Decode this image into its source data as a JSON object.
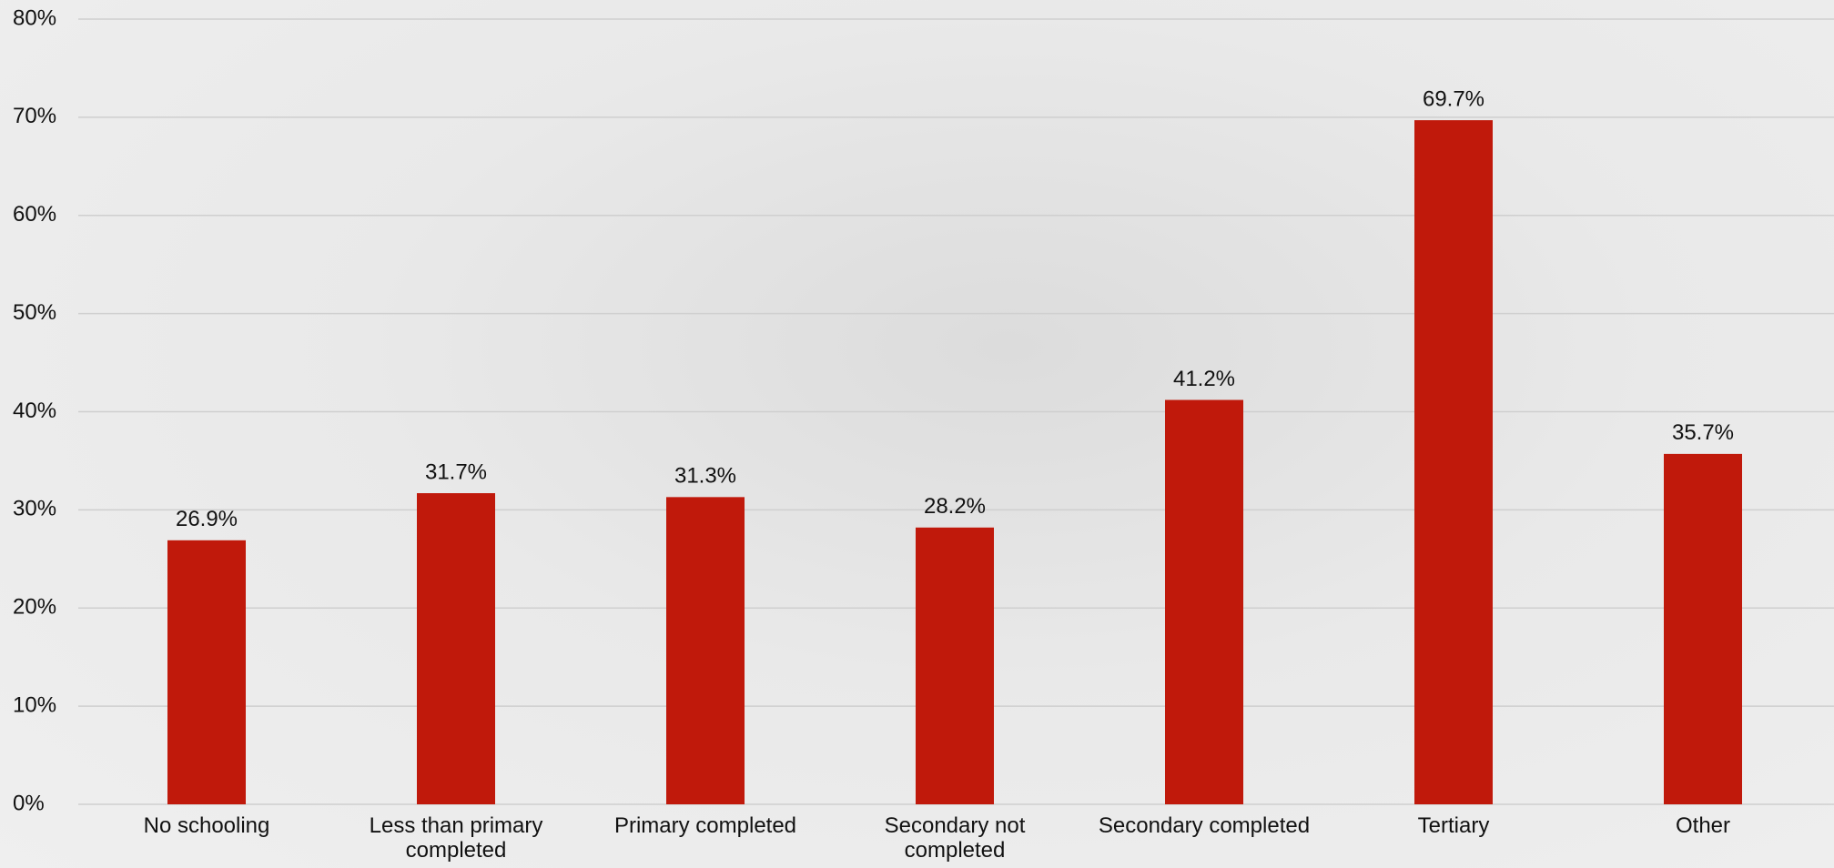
{
  "chart_data": {
    "type": "bar",
    "categories": [
      "No schooling",
      "Less than primary completed",
      "Primary completed",
      "Secondary not completed",
      "Secondary completed",
      "Tertiary",
      "Other"
    ],
    "values": [
      26.9,
      31.7,
      31.3,
      28.2,
      41.2,
      69.7,
      35.7
    ],
    "value_labels": [
      "26.9%",
      "31.7%",
      "31.3%",
      "28.2%",
      "41.2%",
      "69.7%",
      "35.7%"
    ],
    "color": "#c0190b",
    "ylim": [
      0,
      80
    ],
    "yticks": [
      {
        "value": 0,
        "label": "0%"
      },
      {
        "value": 10,
        "label": "10%"
      },
      {
        "value": 20,
        "label": "20%"
      },
      {
        "value": 30,
        "label": "30%"
      },
      {
        "value": 40,
        "label": "40%"
      },
      {
        "value": 50,
        "label": "50%"
      },
      {
        "value": 60,
        "label": "60%"
      },
      {
        "value": 70,
        "label": "70%"
      },
      {
        "value": 80,
        "label": "80%"
      }
    ],
    "grid": true
  }
}
